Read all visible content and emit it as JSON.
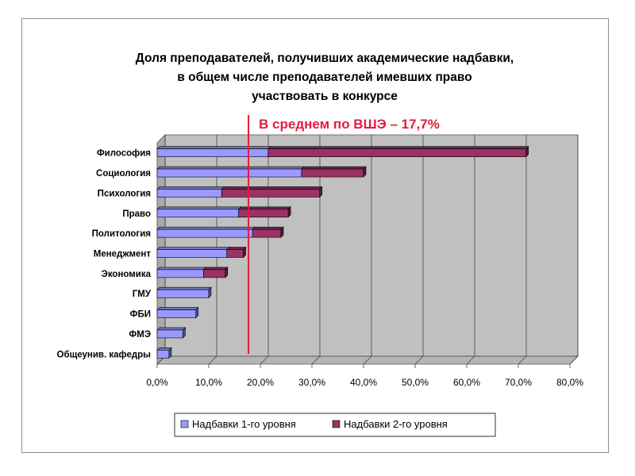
{
  "chart_data": {
    "type": "bar",
    "orientation": "horizontal",
    "stacked": true,
    "title_lines": [
      "Доля преподавателей, получивших академические надбавки,",
      "в общем числе преподавателей имевших право",
      "участвовать в конкурсе"
    ],
    "categories": [
      "Философия",
      "Социология",
      "Психология",
      "Право",
      "Политология",
      "Менеджмент",
      "Экономика",
      "ГМУ",
      "ФБИ",
      "ФМЭ",
      "Общеунив. кафедры"
    ],
    "series": [
      {
        "name": "Надбавки 1-го уровня",
        "color": "#9999ff",
        "values": [
          21.5,
          28.0,
          12.5,
          15.8,
          18.5,
          13.5,
          9.0,
          10.0,
          7.5,
          5.0,
          2.3
        ]
      },
      {
        "name": "Надбавки 2-го уровня",
        "color": "#993366",
        "values": [
          50.0,
          12.0,
          19.0,
          9.6,
          5.5,
          3.2,
          4.2,
          0,
          0,
          0,
          0
        ]
      }
    ],
    "x_ticks": [
      "0,0%",
      "10,0%",
      "20,0%",
      "30,0%",
      "40,0%",
      "50,0%",
      "60,0%",
      "70,0%",
      "80,0%"
    ],
    "xlim": [
      0,
      80
    ],
    "grid": true,
    "legend_position": "bottom",
    "annotation": {
      "text": "В среднем по ВШЭ – 17,7%",
      "value": 17.7,
      "color": "#e8193c"
    }
  }
}
